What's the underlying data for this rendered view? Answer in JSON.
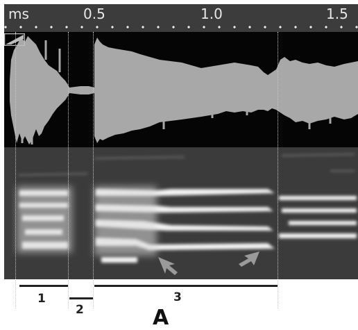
{
  "ruler": {
    "unit_label": "ms",
    "ticks": [
      "0.5",
      "1.0",
      "1.5"
    ]
  },
  "segments": [
    {
      "label": "1"
    },
    {
      "label": "2"
    },
    {
      "label": "3"
    }
  ],
  "figure_label": "A",
  "colors": {
    "ruler_bg": "#3c3c3c",
    "waveform_bg": "#050505",
    "waveform_fill": "#a8a8a8",
    "spectrogram_bg": "#3b3b3b",
    "spectrogram_band": "#f4f4f4",
    "arrow": "#9a9a9a"
  }
}
